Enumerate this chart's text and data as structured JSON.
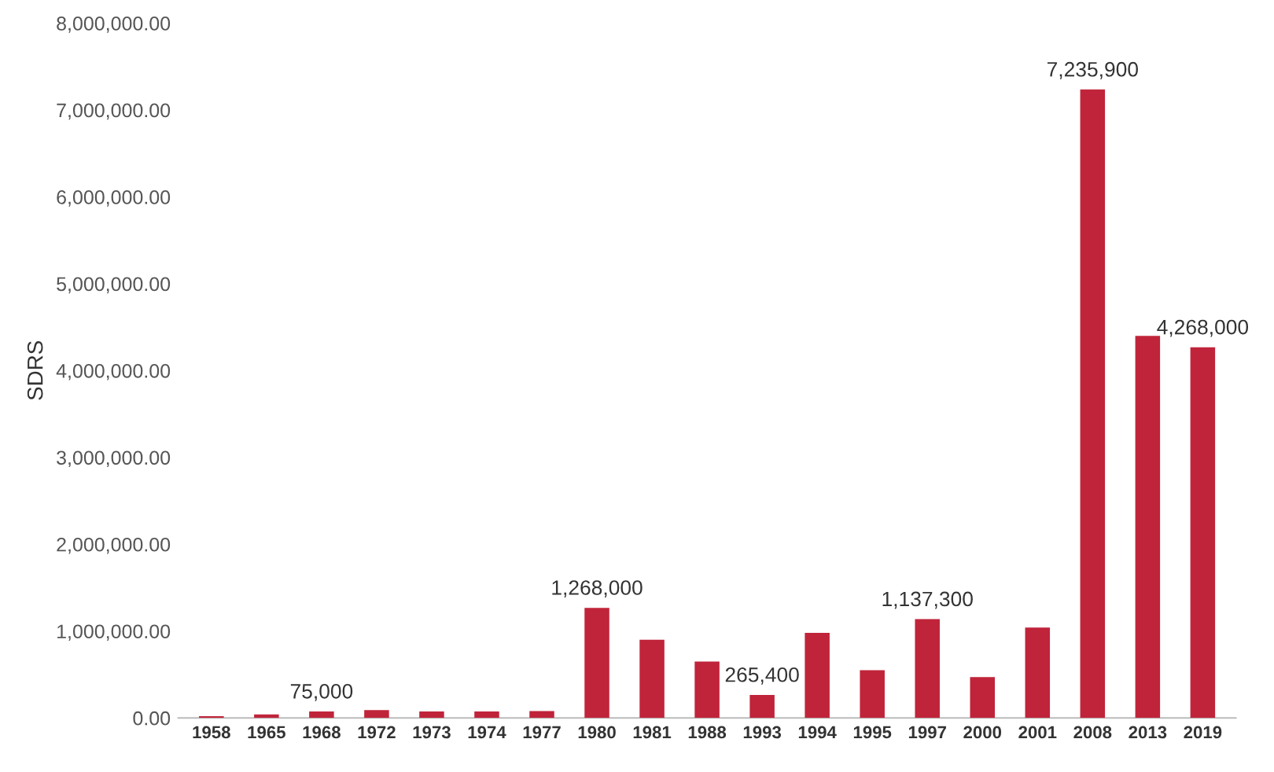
{
  "chart_data": {
    "type": "bar",
    "ylabel": "SDRS",
    "categories": [
      "1958",
      "1965",
      "1968",
      "1972",
      "1973",
      "1974",
      "1977",
      "1980",
      "1981",
      "1988",
      "1993",
      "1994",
      "1995",
      "1997",
      "2000",
      "2001",
      "2008",
      "2013",
      "2019"
    ],
    "values": [
      20000,
      40000,
      75000,
      90000,
      75000,
      75000,
      80000,
      1268000,
      900000,
      650000,
      265400,
      980000,
      550000,
      1137300,
      470000,
      1040000,
      7235900,
      4400000,
      4268000
    ],
    "value_labels": [
      null,
      null,
      "75,000",
      null,
      null,
      null,
      null,
      "1,268,000",
      null,
      null,
      "265,400",
      null,
      null,
      "1,137,300",
      null,
      null,
      "7,235,900",
      null,
      "4,268,000"
    ],
    "color": "#c0243a",
    "ylim": [
      0,
      8000000
    ],
    "yticks": [
      {
        "value": 0,
        "label": "0.00"
      },
      {
        "value": 1000000,
        "label": "1,000,000.00"
      },
      {
        "value": 2000000,
        "label": "2,000,000.00"
      },
      {
        "value": 3000000,
        "label": "3,000,000.00"
      },
      {
        "value": 4000000,
        "label": "4,000,000.00"
      },
      {
        "value": 5000000,
        "label": "5,000,000.00"
      },
      {
        "value": 6000000,
        "label": "6,000,000.00"
      },
      {
        "value": 7000000,
        "label": "7,000,000.00"
      },
      {
        "value": 8000000,
        "label": "8,000,000.00"
      }
    ],
    "grid": false,
    "legend": false
  }
}
